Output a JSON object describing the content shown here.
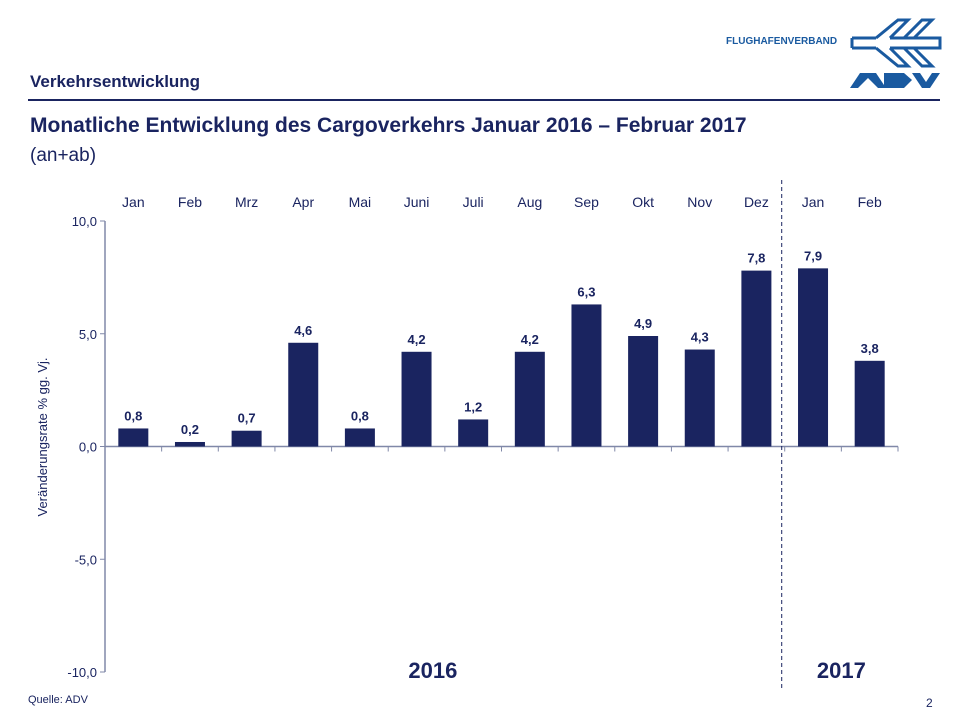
{
  "header": {
    "section": "Verkehrsentwicklung",
    "title": "Monatliche Entwicklung des Cargoverkehrs Januar 2016 – Februar 2017",
    "subtitle": "(an+ab)",
    "logo_text": "FLUGHAFENVERBAND",
    "logo_mark": "ADV"
  },
  "footer": {
    "source": "Quelle: ADV",
    "page": "2"
  },
  "chart_data": {
    "type": "bar",
    "categories": [
      "Jan",
      "Feb",
      "Mrz",
      "Apr",
      "Mai",
      "Juni",
      "Juli",
      "Aug",
      "Sep",
      "Okt",
      "Nov",
      "Dez",
      "Jan",
      "Feb"
    ],
    "values": [
      0.8,
      0.2,
      0.7,
      4.6,
      0.8,
      4.2,
      1.2,
      4.2,
      6.3,
      4.9,
      4.3,
      7.8,
      7.9,
      3.8
    ],
    "data_labels": [
      "0,8",
      "0,2",
      "0,7",
      "4,6",
      "0,8",
      "4,2",
      "1,2",
      "4,2",
      "6,3",
      "4,9",
      "4,3",
      "7,8",
      "7,9",
      "3,8"
    ],
    "ylabel": "Veränderungsrate % gg. Vj.",
    "ylim": [
      -10,
      10
    ],
    "yticks": [
      10,
      5,
      0,
      -5,
      -10
    ],
    "ytick_labels": [
      "10,0",
      "5,0",
      "0,0",
      "-5,0",
      "-10,0"
    ],
    "year_groups": [
      {
        "label": "2016",
        "months": 12
      },
      {
        "label": "2017",
        "months": 2
      }
    ],
    "bar_color": "#1a2460",
    "grid": false,
    "category_labels_position": "top"
  }
}
